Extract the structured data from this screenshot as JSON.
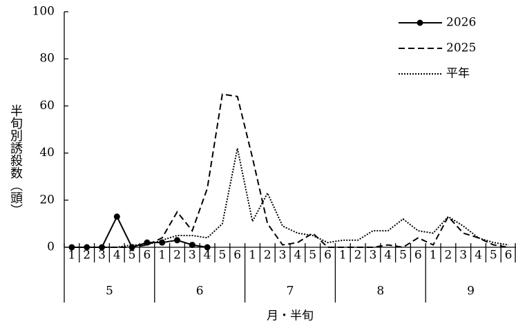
{
  "chart_data": {
    "type": "line",
    "ylabel": "半旬別誘殺数（頭）",
    "xlabel": "月・半旬",
    "categories": [
      "1",
      "2",
      "3",
      "4",
      "5",
      "6",
      "1",
      "2",
      "3",
      "4",
      "5",
      "6",
      "1",
      "2",
      "3",
      "4",
      "5",
      "6",
      "1",
      "2",
      "3",
      "4",
      "5",
      "6",
      "1",
      "2",
      "3",
      "4",
      "5",
      "6"
    ],
    "groups": [
      "5",
      "6",
      "7",
      "8",
      "9"
    ],
    "series": [
      {
        "name": "2026",
        "color": "#000000",
        "style": "solid",
        "marker": true,
        "values": [
          0,
          0,
          0,
          13,
          0,
          2,
          2,
          3,
          1,
          0,
          null,
          null,
          null,
          null,
          null,
          null,
          null,
          null,
          null,
          null,
          null,
          null,
          null,
          null,
          null,
          null,
          null,
          null,
          null,
          null
        ]
      },
      {
        "name": "2025",
        "color": "#000000",
        "style": "dashed",
        "marker": false,
        "values": [
          0,
          0,
          0,
          0,
          0,
          1,
          4,
          15,
          7,
          25,
          65,
          64,
          38,
          10,
          1,
          2,
          6,
          0,
          0,
          0,
          0,
          1,
          0,
          4,
          1,
          13,
          6,
          4,
          1,
          0
        ]
      },
      {
        "name": "平年",
        "color": "#000000",
        "style": "dotted",
        "marker": false,
        "values": [
          0,
          0,
          0,
          0,
          1,
          1,
          3,
          5,
          5,
          4,
          10,
          42,
          11,
          23,
          9,
          6,
          5,
          2,
          3,
          3,
          7,
          7,
          12,
          7,
          6,
          13,
          9,
          4,
          2,
          1
        ]
      }
    ],
    "ylim": [
      0,
      100
    ],
    "yticks": [
      0,
      20,
      40,
      60,
      80,
      100
    ],
    "grid": false
  }
}
